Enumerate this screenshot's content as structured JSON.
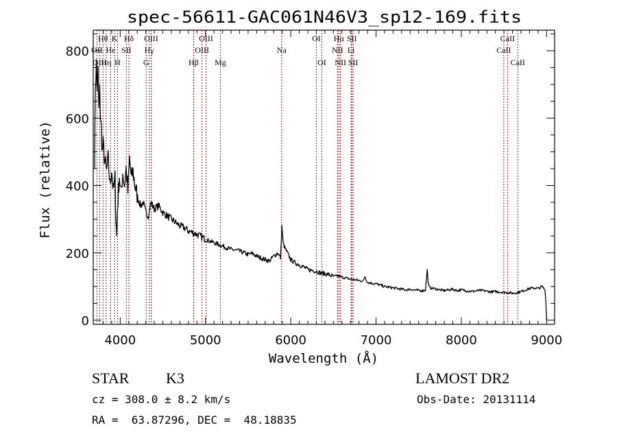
{
  "chart_data": {
    "type": "line",
    "title": "spec-56611-GAC061N46V3_sp12-169.fits",
    "xlabel": "Wavelength (Å)",
    "ylabel": "Flux (relative)",
    "xlim": [
      3700,
      9100
    ],
    "ylim": [
      0,
      860
    ],
    "grid": false,
    "x_ticks": [
      4000,
      5000,
      6000,
      7000,
      8000,
      9000
    ],
    "x_tick_labels": [
      "4000",
      "5000",
      "6000",
      "7000",
      "8000",
      "9000"
    ],
    "y_ticks": [
      0,
      200,
      400,
      600,
      800
    ],
    "y_tick_labels": [
      "0",
      "200",
      "400",
      "600",
      "800"
    ],
    "line_color": "#000000",
    "marker_color": "#8b1a1a",
    "series": [
      {
        "name": "spectrum",
        "x": [
          3700,
          3710,
          3720,
          3730,
          3740,
          3750,
          3760,
          3770,
          3780,
          3790,
          3800,
          3820,
          3840,
          3860,
          3880,
          3900,
          3920,
          3940,
          3950,
          3960,
          3968,
          3975,
          3990,
          4010,
          4030,
          4050,
          4070,
          4090,
          4110,
          4130,
          4150,
          4180,
          4210,
          4240,
          4270,
          4300,
          4330,
          4360,
          4400,
          4450,
          4500,
          4550,
          4600,
          4650,
          4700,
          4750,
          4800,
          4850,
          4900,
          4950,
          5000,
          5050,
          5100,
          5150,
          5200,
          5250,
          5300,
          5350,
          5400,
          5450,
          5500,
          5550,
          5600,
          5650,
          5700,
          5750,
          5800,
          5850,
          5880,
          5890,
          5895,
          5900,
          5910,
          5930,
          5960,
          6000,
          6050,
          6100,
          6150,
          6200,
          6250,
          6300,
          6350,
          6400,
          6450,
          6500,
          6550,
          6600,
          6650,
          6700,
          6750,
          6800,
          6850,
          6870,
          6900,
          6950,
          7000,
          7050,
          7100,
          7150,
          7200,
          7250,
          7300,
          7350,
          7400,
          7450,
          7500,
          7550,
          7580,
          7600,
          7610,
          7620,
          7650,
          7700,
          7750,
          7800,
          7850,
          7900,
          7950,
          8000,
          8050,
          8100,
          8150,
          8200,
          8250,
          8300,
          8350,
          8400,
          8450,
          8500,
          8550,
          8600,
          8650,
          8700,
          8750,
          8800,
          8850,
          8900,
          8950,
          8980,
          8990,
          9000
        ],
        "y": [
          480,
          700,
          760,
          690,
          740,
          620,
          680,
          600,
          560,
          500,
          520,
          470,
          440,
          480,
          400,
          450,
          380,
          420,
          300,
          250,
          330,
          360,
          430,
          370,
          440,
          400,
          450,
          380,
          480,
          420,
          440,
          390,
          360,
          340,
          350,
          320,
          310,
          350,
          330,
          340,
          320,
          310,
          300,
          290,
          280,
          275,
          265,
          260,
          255,
          248,
          240,
          235,
          230,
          225,
          220,
          215,
          210,
          208,
          205,
          200,
          195,
          198,
          190,
          185,
          180,
          176,
          190,
          200,
          185,
          240,
          280,
          265,
          230,
          215,
          200,
          180,
          170,
          165,
          158,
          150,
          148,
          145,
          140,
          138,
          135,
          130,
          132,
          128,
          125,
          122,
          120,
          118,
          116,
          130,
          112,
          110,
          108,
          104,
          100,
          98,
          96,
          94,
          92,
          90,
          92,
          90,
          88,
          88,
          90,
          150,
          115,
          100,
          95,
          93,
          90,
          88,
          90,
          92,
          88,
          90,
          88,
          86,
          86,
          88,
          88,
          86,
          84,
          85,
          84,
          83,
          82,
          80,
          82,
          85,
          90,
          94,
          96,
          94,
          100,
          90,
          60,
          0
        ]
      }
    ],
    "line_markers": [
      {
        "label": "Hθ",
        "x": 3798,
        "row": 1
      },
      {
        "label": "K",
        "x": 3934,
        "row": 1
      },
      {
        "label": "Hδ",
        "x": 4102,
        "row": 1
      },
      {
        "label": "OIII",
        "x": 4363,
        "row": 1
      },
      {
        "label": "OIII",
        "x": 5007,
        "row": 1
      },
      {
        "label": "OI",
        "x": 6300,
        "row": 1
      },
      {
        "label": "Hα",
        "x": 6563,
        "row": 1
      },
      {
        "label": "SII",
        "x": 6716,
        "row": 1
      },
      {
        "label": "CaII",
        "x": 8542,
        "row": 1
      },
      {
        "label": "OII",
        "x": 3727,
        "row": 2
      },
      {
        "label": "He",
        "x": 3889,
        "row": 2
      },
      {
        "label": "SII",
        "x": 4072,
        "row": 2
      },
      {
        "label": "Hγ",
        "x": 4340,
        "row": 2
      },
      {
        "label": "OIII",
        "x": 4959,
        "row": 2
      },
      {
        "label": "Na",
        "x": 5893,
        "row": 2
      },
      {
        "label": "NII",
        "x": 6548,
        "row": 2
      },
      {
        "label": "Li",
        "x": 6708,
        "row": 2
      },
      {
        "label": "CaII",
        "x": 8498,
        "row": 2
      },
      {
        "label": "OIII",
        "x": 3760,
        "row": 3
      },
      {
        "label": "Hη",
        "x": 3835,
        "row": 3
      },
      {
        "label": "H",
        "x": 3969,
        "row": 3
      },
      {
        "label": "G",
        "x": 4305,
        "row": 3
      },
      {
        "label": "Hβ",
        "x": 4861,
        "row": 3
      },
      {
        "label": "Mg",
        "x": 5175,
        "row": 3
      },
      {
        "label": "OI",
        "x": 6364,
        "row": 3
      },
      {
        "label": "NII",
        "x": 6583,
        "row": 3
      },
      {
        "label": "SII",
        "x": 6731,
        "row": 3
      },
      {
        "label": "CaII",
        "x": 8662,
        "row": 3
      }
    ]
  },
  "info": {
    "object_class": "STAR",
    "subclass": "K3",
    "redshift": "cz = 308.0 ± 8.2 km/s",
    "coords": "RA =  63.87296, DEC =  48.18835",
    "survey": "LAMOST DR2",
    "obs_date": "Obs-Date: 20131114"
  }
}
